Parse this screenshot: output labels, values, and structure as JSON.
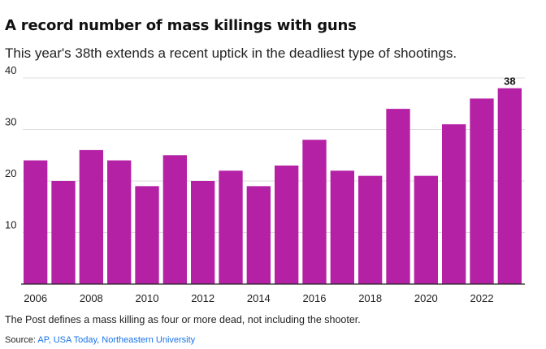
{
  "title": "A record number of mass killings with guns",
  "subtitle": "This year's 38th extends a recent uptick in the deadliest type of shootings.",
  "note": "The Post defines a mass killing as four or more dead, not including the shooter.",
  "source_label": "Source: ",
  "source_links": "AP, USA Today, Northeastern University",
  "colors": {
    "bar": "#b521a5",
    "grid": "#dddddd",
    "axis": "#222222",
    "link": "#1a73e8"
  },
  "chart_data": {
    "type": "bar",
    "title": "A record number of mass killings with guns",
    "xlabel": "",
    "ylabel": "",
    "categories": [
      "2006",
      "2007",
      "2008",
      "2009",
      "2010",
      "2011",
      "2012",
      "2013",
      "2014",
      "2015",
      "2016",
      "2017",
      "2018",
      "2019",
      "2020",
      "2021",
      "2022",
      "2023"
    ],
    "values": [
      24,
      20,
      26,
      24,
      19,
      25,
      20,
      22,
      19,
      23,
      28,
      22,
      21,
      34,
      21,
      31,
      36,
      38
    ],
    "ylim": [
      0,
      40
    ],
    "y_ticks": [
      10,
      20,
      30,
      40
    ],
    "x_tick_labels": [
      "2006",
      "2008",
      "2010",
      "2012",
      "2014",
      "2016",
      "2018",
      "2020",
      "2022"
    ],
    "annotation": {
      "category": "2023",
      "label": "38"
    },
    "grid": true
  }
}
